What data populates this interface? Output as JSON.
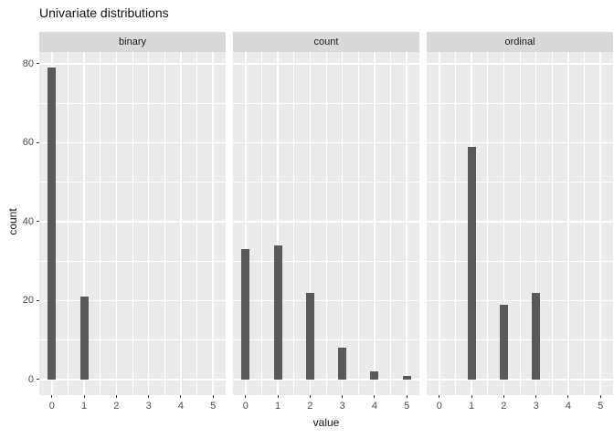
{
  "title": "Univariate distributions",
  "chart_data": {
    "type": "bar",
    "title": "Univariate distributions",
    "subtitle": "",
    "xlabel": "value",
    "ylabel": "count",
    "legend": "none",
    "grid": "on",
    "facets": [
      {
        "label": "binary",
        "bars": [
          {
            "x": 0,
            "count": 79
          },
          {
            "x": 1,
            "count": 21
          }
        ]
      },
      {
        "label": "count",
        "bars": [
          {
            "x": 0,
            "count": 33
          },
          {
            "x": 1,
            "count": 34
          },
          {
            "x": 2,
            "count": 22
          },
          {
            "x": 3,
            "count": 8
          },
          {
            "x": 4,
            "count": 2
          },
          {
            "x": 5,
            "count": 1
          }
        ]
      },
      {
        "label": "ordinal",
        "bars": [
          {
            "x": 1,
            "count": 59
          },
          {
            "x": 2,
            "count": 19
          },
          {
            "x": 3,
            "count": 22
          }
        ]
      }
    ],
    "x_ticks": [
      0,
      1,
      2,
      3,
      4,
      5
    ],
    "x_minor_ticks": [
      0.5,
      1.5,
      2.5,
      3.5,
      4.5
    ],
    "y_ticks": [
      0,
      20,
      40,
      60,
      80
    ],
    "y_minor_ticks": [
      10,
      30,
      50,
      70
    ],
    "xlim": [
      -0.39,
      5.39
    ],
    "ylim": [
      -3.95,
      82.95
    ],
    "colors": {
      "bar": "#595959",
      "panel_background": "#ebebeb",
      "strip_background": "#d9d9d9",
      "gridline": "#ffffff",
      "axis_text": "#4d4d4d",
      "tick_mark": "#333333",
      "title_text": "#141414"
    }
  }
}
